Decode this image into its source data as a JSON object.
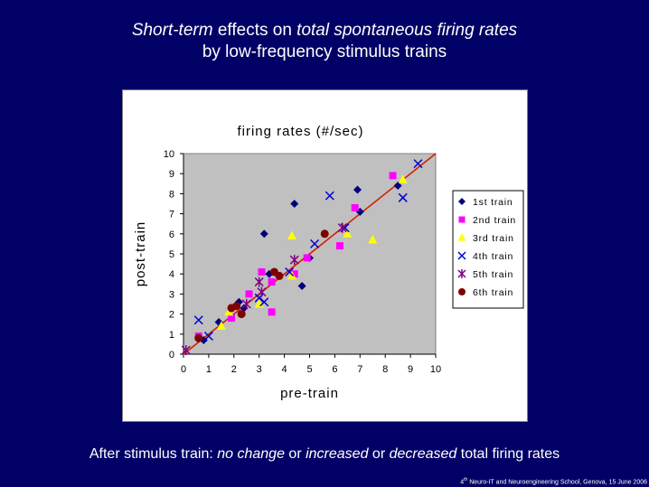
{
  "slide": {
    "title_line1": {
      "em1": "Short-term",
      "t1": " effects on ",
      "em2": "total spontaneous firing rates"
    },
    "title_line2": "by low-frequency stimulus trains",
    "caption": {
      "t1": "After stimulus train: ",
      "em1": "no change",
      "t2": " or ",
      "em2": "increased",
      "t3": " or ",
      "em3": "decreased",
      "t4": " total firing rates"
    },
    "footer": {
      "sup": "th",
      "text": " Neuro-IT and Neuroengineering School, Genova, 15 June 2006",
      "num": "4"
    }
  },
  "chart_data": {
    "type": "scatter",
    "title": "firing rates (#/sec)",
    "xlabel": "pre-train",
    "ylabel": "post-train",
    "xlim": [
      0,
      10
    ],
    "ylim": [
      0,
      10
    ],
    "xticks": [
      "0",
      "1",
      "2",
      "3",
      "4",
      "5",
      "6",
      "7",
      "8",
      "9",
      "10"
    ],
    "yticks": [
      "0",
      "1",
      "2",
      "3",
      "4",
      "5",
      "6",
      "7",
      "8",
      "9",
      "10"
    ],
    "grid": false,
    "legend": "right",
    "plot_background": "#c0c0c0",
    "identity_line": {
      "from": [
        0,
        0
      ],
      "to": [
        10,
        10
      ],
      "color": "#cc2200"
    },
    "series": [
      {
        "name": "1st train",
        "marker": "diamond",
        "color": "#000080",
        "points": [
          [
            0.8,
            0.7
          ],
          [
            1.4,
            1.6
          ],
          [
            2.2,
            2.6
          ],
          [
            2.4,
            2.3
          ],
          [
            3.2,
            6.0
          ],
          [
            3.4,
            4.0
          ],
          [
            4.4,
            7.5
          ],
          [
            4.7,
            3.4
          ],
          [
            5.0,
            4.8
          ],
          [
            6.9,
            8.2
          ],
          [
            7.0,
            7.1
          ],
          [
            8.5,
            8.4
          ]
        ]
      },
      {
        "name": "2nd train",
        "marker": "square",
        "color": "#ff00ff",
        "points": [
          [
            0.6,
            0.9
          ],
          [
            1.9,
            1.8
          ],
          [
            2.6,
            3.0
          ],
          [
            3.1,
            4.1
          ],
          [
            3.5,
            2.1
          ],
          [
            3.5,
            3.6
          ],
          [
            4.4,
            4.0
          ],
          [
            4.9,
            4.8
          ],
          [
            6.2,
            5.4
          ],
          [
            6.8,
            7.3
          ],
          [
            8.3,
            8.9
          ]
        ]
      },
      {
        "name": "3rd train",
        "marker": "triangle",
        "color": "#ffff00",
        "points": [
          [
            1.5,
            1.4
          ],
          [
            1.8,
            2.1
          ],
          [
            3.0,
            2.5
          ],
          [
            4.3,
            3.9
          ],
          [
            4.3,
            5.9
          ],
          [
            6.5,
            6.0
          ],
          [
            7.5,
            5.7
          ],
          [
            8.7,
            8.7
          ]
        ]
      },
      {
        "name": "4th train",
        "marker": "x",
        "color": "#0000cc",
        "points": [
          [
            0.6,
            1.7
          ],
          [
            1.0,
            0.9
          ],
          [
            3.0,
            2.8
          ],
          [
            3.2,
            2.6
          ],
          [
            4.2,
            4.1
          ],
          [
            5.2,
            5.5
          ],
          [
            5.8,
            7.9
          ],
          [
            6.4,
            6.3
          ],
          [
            8.7,
            7.8
          ],
          [
            9.3,
            9.5
          ]
        ]
      },
      {
        "name": "5th train",
        "marker": "star",
        "color": "#800080",
        "points": [
          [
            0.1,
            0.2
          ],
          [
            2.5,
            2.5
          ],
          [
            3.0,
            3.6
          ],
          [
            3.1,
            3.1
          ],
          [
            4.4,
            4.7
          ],
          [
            6.3,
            6.3
          ]
        ]
      },
      {
        "name": "6th train",
        "marker": "circle",
        "color": "#800000",
        "points": [
          [
            0.6,
            0.8
          ],
          [
            1.9,
            2.3
          ],
          [
            2.1,
            2.4
          ],
          [
            2.3,
            2.0
          ],
          [
            3.6,
            4.1
          ],
          [
            3.8,
            3.9
          ],
          [
            5.6,
            6.0
          ]
        ]
      }
    ]
  }
}
